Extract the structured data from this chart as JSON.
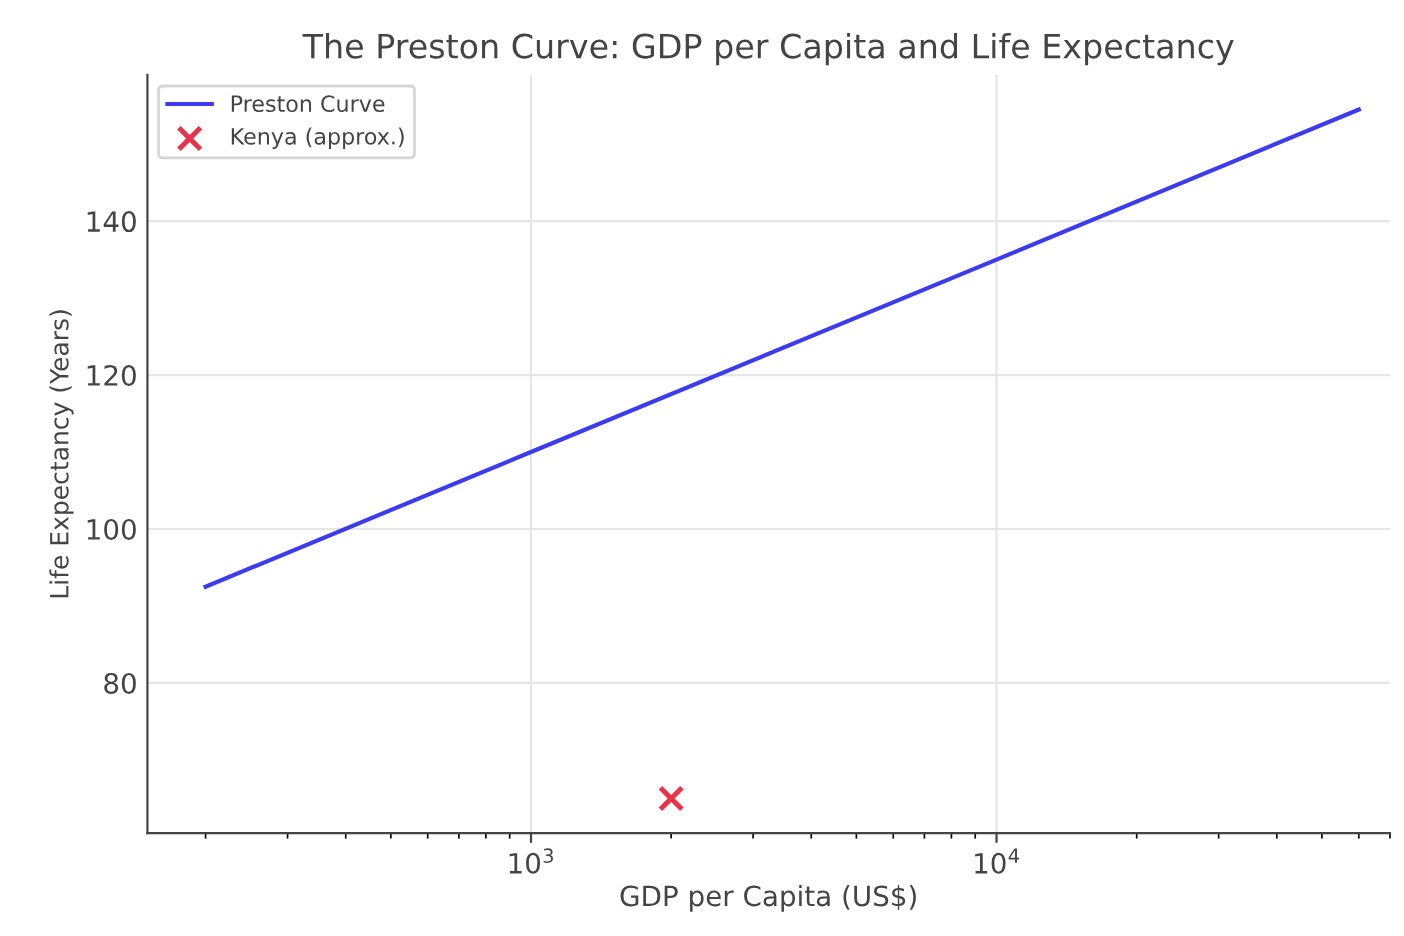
{
  "chart_data": {
    "type": "line",
    "title": "The Preston Curve: GDP per Capita and Life Expectancy",
    "xlabel": "GDP per Capita (US$)",
    "ylabel": "Life Expectancy (Years)",
    "series": [
      {
        "name": "Preston Curve",
        "color": "#3b3bf0",
        "x": [
          200,
          1000,
          10000,
          60000
        ],
        "values": [
          92.5,
          110,
          135,
          154.5
        ]
      },
      {
        "name": "Kenya (approx.)",
        "type": "scatter",
        "color": "#e8334a",
        "marker": "cross",
        "x": [
          2000
        ],
        "values": [
          65
        ]
      }
    ],
    "log": "x",
    "xlim": [
      150,
      70000
    ],
    "xticks": [
      {
        "value": 1000,
        "label": "10$^{3}$"
      },
      {
        "value": 10000,
        "label": "10$^{4}$"
      }
    ],
    "ylim": [
      60.5,
      159
    ],
    "yticks": [
      80,
      100,
      120,
      140
    ],
    "grid": true,
    "legend": "top left"
  }
}
